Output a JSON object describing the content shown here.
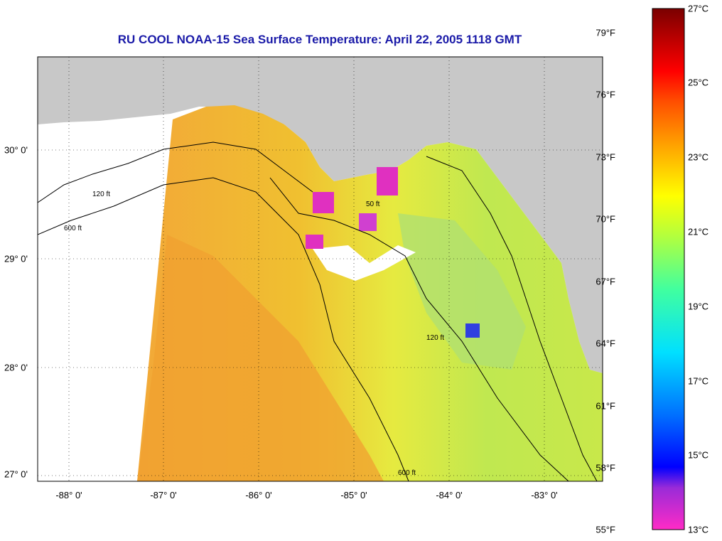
{
  "title": "RU COOL  NOAA-15  Sea Surface Temperature:  April 22, 2005 1118 GMT",
  "longitude_ticks": [
    "-88° 0'",
    "-87° 0'",
    "-86° 0'",
    "-85° 0'",
    "-84° 0'",
    "-83° 0'"
  ],
  "latitude_ticks": [
    "30° 0'",
    "29° 0'",
    "28° 0'",
    "27° 0'"
  ],
  "colorbar": {
    "fahrenheit": [
      "79°F",
      "76°F",
      "73°F",
      "70°F",
      "67°F",
      "64°F",
      "61°F",
      "58°F",
      "55°F"
    ],
    "celsius": [
      "27°C",
      "25°C",
      "23°C",
      "21°C",
      "19°C",
      "17°C",
      "15°C",
      "13°C"
    ]
  },
  "contour_labels": [
    "50 ft",
    "120 ft",
    "600 ft"
  ],
  "colors": {
    "title": "#1a1aa8",
    "land": "#c8c8c8",
    "ocean_no_data": "#ffffff",
    "sst_warm": "#f0a020",
    "sst_mid": "#e8e83a",
    "sst_cool": "#a8e060"
  }
}
